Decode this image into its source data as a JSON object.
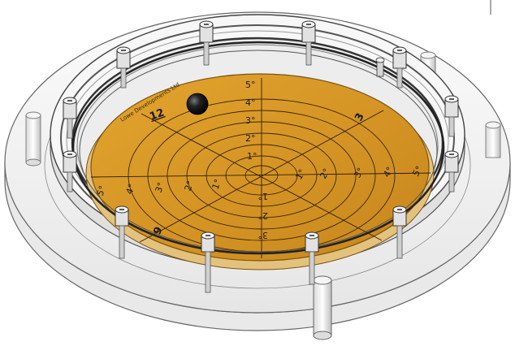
{
  "scene": {
    "level_bubble_labels": {
      "rings_up": [
        "1°",
        "2°",
        "3°",
        "4°",
        "5°"
      ],
      "rings_right": [
        "1°",
        "2°",
        "3°",
        "4°",
        "5°"
      ],
      "rings_left": [
        "1°",
        "2°",
        "3°",
        "4°",
        "5°"
      ],
      "rings_down": [
        "1°",
        "2°",
        "3°"
      ],
      "clock_12": "12",
      "clock_3": "3",
      "clock_9": "9",
      "brand_text": "Lowe Developments Ltd"
    },
    "colors": {
      "dial_face": "#d99a26",
      "dial_edge": "#7a5212",
      "acrylic": "#f2f2f2",
      "acrylic_edge": "#6e6e6e",
      "metal": "#cfcfcf",
      "bubble": "#1b1b1b"
    },
    "icons": [
      "bolt-icon",
      "pillar-icon",
      "ball-bubble-icon"
    ]
  }
}
